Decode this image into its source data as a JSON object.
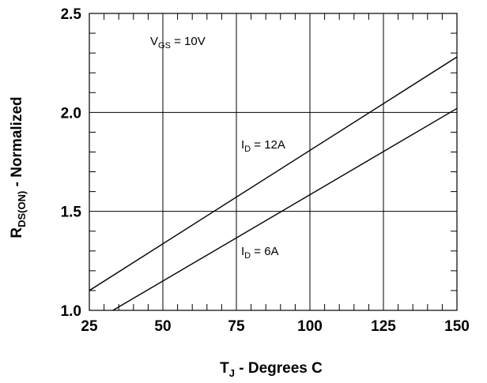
{
  "chart_data": {
    "type": "line",
    "xlabel_main": "T",
    "xlabel_sub": "J",
    "xlabel_rest": " - Degrees C",
    "ylabel_main": "R",
    "ylabel_sub": "DS(ON)",
    "ylabel_rest": " - Normalized",
    "xlim": [
      25,
      150
    ],
    "ylim": [
      1.0,
      2.5
    ],
    "x_ticks": [
      25,
      50,
      75,
      100,
      125,
      150
    ],
    "y_ticks": [
      1.0,
      1.5,
      2.0,
      2.5
    ],
    "x_tick_labels": [
      "25",
      "50",
      "75",
      "100",
      "125",
      "150"
    ],
    "y_tick_labels": [
      "1.0",
      "1.5",
      "2.0",
      "2.5"
    ],
    "grid": true,
    "series": [
      {
        "x": [
          25,
          150
        ],
        "y": [
          1.1,
          2.28
        ]
      },
      {
        "x": [
          33,
          150
        ],
        "y": [
          1.0,
          2.02
        ]
      }
    ],
    "annotations": {
      "vgs": {
        "main": "V",
        "sub": "GS",
        "rest": " = 10V"
      },
      "id12": {
        "main": "I",
        "sub": "D",
        "rest": " = 12A"
      },
      "id6": {
        "main": "I",
        "sub": "D",
        "rest": " = 6A"
      }
    },
    "colors": {
      "line": "#000000",
      "grid": "#000000"
    }
  }
}
